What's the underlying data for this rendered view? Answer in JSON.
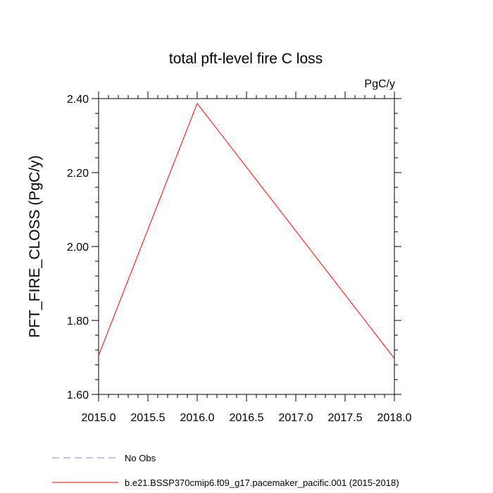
{
  "chart_data": {
    "type": "line",
    "title": "total pft-level fire C loss",
    "units_label": "PgC/y",
    "xlabel": "",
    "ylabel": "PFT_FIRE_CLOSS  (PgC/y)",
    "xlim": [
      2015.0,
      2018.0
    ],
    "ylim": [
      1.6,
      2.4
    ],
    "x_ticks": [
      2015.0,
      2015.5,
      2016.0,
      2016.5,
      2017.0,
      2017.5,
      2018.0
    ],
    "x_tick_labels": [
      "2015.0",
      "2015.5",
      "2016.0",
      "2016.5",
      "2017.0",
      "2017.5",
      "2018.0"
    ],
    "y_ticks": [
      1.6,
      1.8,
      2.0,
      2.2,
      2.4
    ],
    "y_tick_labels": [
      "1.60",
      "1.80",
      "2.00",
      "2.20",
      "2.40"
    ],
    "y_minor_step": 0.04,
    "x_minor_step": 0.1,
    "series": [
      {
        "name": "b.e21.BSSP370cmip6.f09_g17.pacemaker_pacific.001 (2015-2018)",
        "color": "#ff0000",
        "dash": "solid",
        "x": [
          2015.0,
          2016.0,
          2018.0
        ],
        "y": [
          1.705,
          2.387,
          1.697
        ]
      }
    ],
    "legend": [
      {
        "label": "No Obs",
        "color": "#8080ff",
        "dash": "dashed"
      },
      {
        "label": "b.e21.BSSP370cmip6.f09_g17.pacemaker_pacific.001 (2015-2018)",
        "color": "#ff0000",
        "dash": "solid"
      }
    ],
    "legend_position": "bottom",
    "grid": false
  }
}
